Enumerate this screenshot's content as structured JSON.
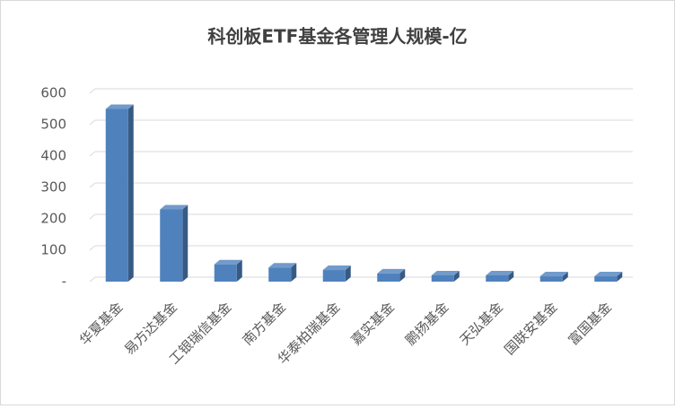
{
  "chart_data": {
    "type": "bar3d",
    "title": "科创板ETF基金各管理人规模-亿",
    "categories": [
      "华夏基金",
      "易方达基金",
      "工银瑞信基金",
      "南方基金",
      "华泰柏瑞基金",
      "嘉实基金",
      "鹏扬基金",
      "天弘基金",
      "国联安基金",
      "富国基金"
    ],
    "values": [
      550,
      230,
      55,
      45,
      37,
      26,
      20,
      20,
      17,
      17
    ],
    "color": "#4f81bd",
    "ylim": [
      0,
      600
    ],
    "yticks": [
      {
        "value": 0,
        "label": "-"
      },
      100,
      200,
      300,
      400,
      500,
      600
    ],
    "grid": true
  }
}
